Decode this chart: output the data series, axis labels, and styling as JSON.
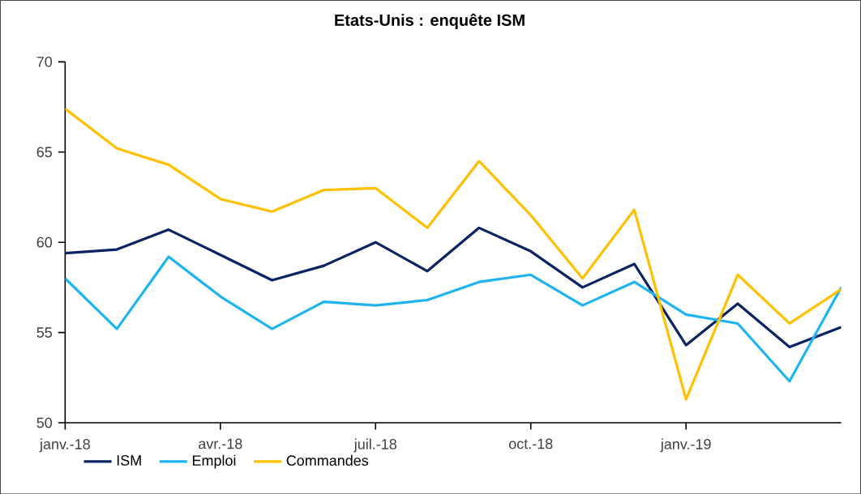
{
  "chart_data": {
    "type": "line",
    "title": "Etats-Unis : enquête ISM",
    "x": [
      "2018-01",
      "2018-02",
      "2018-03",
      "2018-04",
      "2018-05",
      "2018-06",
      "2018-07",
      "2018-08",
      "2018-09",
      "2018-10",
      "2018-11",
      "2018-12",
      "2019-01",
      "2019-02",
      "2019-03",
      "2019-04"
    ],
    "series": [
      {
        "name": "ISM",
        "color": "#0a2463",
        "values": [
          59.4,
          59.6,
          60.7,
          59.3,
          57.9,
          58.7,
          60.0,
          58.4,
          60.8,
          59.5,
          57.5,
          58.8,
          54.3,
          56.6,
          54.2,
          55.3
        ]
      },
      {
        "name": "Emploi",
        "color": "#1eb4f0",
        "values": [
          58.0,
          55.2,
          59.2,
          57.0,
          55.2,
          56.7,
          56.5,
          56.8,
          57.8,
          58.2,
          56.5,
          57.8,
          56.0,
          55.5,
          52.3,
          57.5
        ]
      },
      {
        "name": "Commandes",
        "color": "#ffc000",
        "values": [
          67.4,
          65.2,
          64.3,
          62.4,
          61.7,
          62.9,
          63.0,
          60.8,
          64.5,
          61.5,
          58.0,
          61.8,
          51.3,
          58.2,
          55.5,
          57.4
        ]
      }
    ],
    "xlim": [
      "2018-01",
      "2019-04"
    ],
    "xticks": [
      {
        "value": "2018-01",
        "label": "janv.-18"
      },
      {
        "value": "2018-04",
        "label": "avr.-18"
      },
      {
        "value": "2018-07",
        "label": "juil.-18"
      },
      {
        "value": "2018-10",
        "label": "oct.-18"
      },
      {
        "value": "2019-01",
        "label": "janv.-19"
      }
    ],
    "ylim": [
      50,
      70
    ],
    "yticks": [
      50,
      55,
      60,
      65,
      70
    ],
    "grid": false,
    "legend": "bottom",
    "marker": "none",
    "line_style": "solid"
  }
}
